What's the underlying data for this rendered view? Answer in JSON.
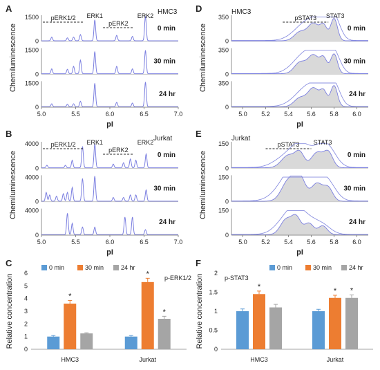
{
  "chart_data": [
    {
      "panel": "A",
      "type": "line",
      "cell_line": "HMC3",
      "ylabel": "Chemiluminescence",
      "xlabel": "pI",
      "x_ticks": [
        "5.0",
        "5.5",
        "6.0",
        "6.5",
        "7.0"
      ],
      "xlim": [
        5.0,
        7.0
      ],
      "ylim": [
        0,
        1500
      ],
      "y_ticks": [
        "1500",
        "0"
      ],
      "bracket_labels": [
        {
          "text": "pERK1/2",
          "x1": 5.02,
          "x2": 5.62
        },
        {
          "text": "pERK2",
          "x1": 5.9,
          "x2": 6.35
        }
      ],
      "peak_labels": [
        {
          "text": "ERK1",
          "x": 5.78
        },
        {
          "text": "ERK2",
          "x": 6.52
        }
      ],
      "traces": [
        {
          "label": "0 min",
          "peaks": [
            [
              5.15,
              0.15
            ],
            [
              5.38,
              0.12
            ],
            [
              5.47,
              0.15
            ],
            [
              5.57,
              0.25
            ],
            [
              5.78,
              0.85
            ],
            [
              6.1,
              0.22
            ],
            [
              6.33,
              0.18
            ],
            [
              6.52,
              1.0
            ]
          ]
        },
        {
          "label": "30 min",
          "peaks": [
            [
              5.15,
              0.2
            ],
            [
              5.38,
              0.18
            ],
            [
              5.47,
              0.3
            ],
            [
              5.57,
              0.55
            ],
            [
              5.78,
              0.9
            ],
            [
              6.1,
              0.3
            ],
            [
              6.33,
              0.2
            ],
            [
              6.52,
              0.95
            ]
          ]
        },
        {
          "label": "24 hr",
          "peaks": [
            [
              5.15,
              0.12
            ],
            [
              5.38,
              0.1
            ],
            [
              5.47,
              0.12
            ],
            [
              5.57,
              0.22
            ],
            [
              5.78,
              0.95
            ],
            [
              6.1,
              0.18
            ],
            [
              6.33,
              0.15
            ],
            [
              6.52,
              1.0
            ]
          ]
        }
      ]
    },
    {
      "panel": "B",
      "type": "line",
      "cell_line": "Jurkat",
      "ylabel": "Chemiluminescence",
      "xlabel": "pI",
      "x_ticks": [
        "5.0",
        "5.5",
        "6.0",
        "6.5",
        "7.0"
      ],
      "xlim": [
        5.0,
        7.0
      ],
      "ylim": [
        0,
        4000
      ],
      "y_ticks": [
        "4000",
        "0"
      ],
      "bracket_labels": [
        {
          "text": "pERK1/2",
          "x1": 5.02,
          "x2": 5.62
        },
        {
          "text": "pERK2",
          "x1": 5.9,
          "x2": 6.35
        }
      ],
      "peak_labels": [
        {
          "text": "ERK1",
          "x": 5.78
        },
        {
          "text": "ERK2",
          "x": 6.52
        }
      ],
      "traces": [
        {
          "label": "0 min",
          "peaks": [
            [
              5.08,
              0.1
            ],
            [
              5.35,
              0.1
            ],
            [
              5.45,
              0.3
            ],
            [
              5.6,
              0.85
            ],
            [
              5.78,
              0.95
            ],
            [
              6.05,
              0.15
            ],
            [
              6.2,
              0.2
            ],
            [
              6.3,
              0.35
            ],
            [
              6.38,
              0.3
            ],
            [
              6.53,
              0.55
            ]
          ]
        },
        {
          "label": "30 min",
          "peaks": [
            [
              5.07,
              0.35
            ],
            [
              5.12,
              0.25
            ],
            [
              5.22,
              0.2
            ],
            [
              5.32,
              0.3
            ],
            [
              5.38,
              0.35
            ],
            [
              5.45,
              0.55
            ],
            [
              5.6,
              0.9
            ],
            [
              5.78,
              1.0
            ],
            [
              6.05,
              0.15
            ],
            [
              6.2,
              0.15
            ],
            [
              6.3,
              0.25
            ],
            [
              6.38,
              0.25
            ],
            [
              6.53,
              0.45
            ]
          ]
        },
        {
          "label": "24 hr",
          "peaks": [
            [
              5.38,
              0.85
            ],
            [
              5.45,
              0.45
            ],
            [
              5.6,
              0.3
            ],
            [
              5.78,
              0.3
            ],
            [
              6.22,
              0.7
            ],
            [
              6.33,
              0.7
            ],
            [
              6.52,
              0.2
            ]
          ]
        }
      ]
    },
    {
      "panel": "C",
      "type": "bar",
      "title": "p-ERK1/2",
      "ylabel": "Relative  concentration",
      "categories": [
        "HMC3",
        "Jurkat"
      ],
      "ylim": [
        0,
        6
      ],
      "y_ticks": [
        "0",
        "1",
        "2",
        "3",
        "4",
        "5",
        "6"
      ],
      "legend_position": "top",
      "series": [
        {
          "name": "0 min",
          "color": "#5b9bd5",
          "values": [
            1.0,
            1.0
          ],
          "errors": [
            0.08,
            0.08
          ]
        },
        {
          "name": "30 min",
          "color": "#ed7d31",
          "values": [
            3.6,
            5.3
          ],
          "errors": [
            0.25,
            0.3
          ]
        },
        {
          "name": "24 hr",
          "color": "#a5a5a5",
          "values": [
            1.25,
            2.4
          ],
          "errors": [
            0.05,
            0.2
          ]
        }
      ],
      "significance": [
        [
          false,
          true,
          false
        ],
        [
          false,
          true,
          true
        ]
      ]
    },
    {
      "panel": "D",
      "type": "area",
      "cell_line": "HMC3",
      "ylabel": "Chemiluminescence",
      "xlabel": "pI",
      "x_ticks": [
        "5.0",
        "5.2",
        "5.4",
        "5.6",
        "5.8",
        "6.0"
      ],
      "xlim": [
        4.9,
        6.1
      ],
      "ylim": [
        0,
        350
      ],
      "y_ticks": [
        "350",
        "0"
      ],
      "bracket_labels": [
        {
          "text": "pSTAT3",
          "x1": 5.35,
          "x2": 5.75
        }
      ],
      "peak_labels": [
        {
          "text": "STAT3",
          "x": 5.81
        }
      ],
      "traces": [
        {
          "label": "0 min",
          "peaks": [
            [
              5.5,
              0.35,
              0.05
            ],
            [
              5.62,
              0.7,
              0.05
            ],
            [
              5.71,
              0.55,
              0.03
            ],
            [
              5.8,
              0.9,
              0.03
            ]
          ]
        },
        {
          "label": "30 min",
          "peaks": [
            [
              5.5,
              0.45,
              0.05
            ],
            [
              5.62,
              0.75,
              0.05
            ],
            [
              5.71,
              0.55,
              0.03
            ],
            [
              5.8,
              0.8,
              0.03
            ]
          ]
        },
        {
          "label": "24 hr",
          "peaks": [
            [
              5.5,
              0.35,
              0.05
            ],
            [
              5.62,
              0.75,
              0.05
            ],
            [
              5.71,
              0.55,
              0.03
            ],
            [
              5.8,
              0.85,
              0.03
            ]
          ]
        }
      ]
    },
    {
      "panel": "E",
      "type": "area",
      "cell_line": "Jurkat",
      "ylabel": "Chemiluminescence",
      "xlabel": "pI",
      "x_ticks": [
        "5.0",
        "5.2",
        "5.4",
        "5.6",
        "5.8",
        "6.0"
      ],
      "xlim": [
        4.9,
        6.1
      ],
      "ylim": [
        0,
        150
      ],
      "y_ticks": [
        "150",
        "0"
      ],
      "bracket_labels": [
        {
          "text": "pSTAT3",
          "x1": 5.2,
          "x2": 5.6
        }
      ],
      "peak_labels": [
        {
          "text": "STAT3",
          "x": 5.7
        }
      ],
      "traces": [
        {
          "label": "0 min",
          "peaks": [
            [
              5.4,
              0.5,
              0.06
            ],
            [
              5.5,
              0.55,
              0.04
            ],
            [
              5.65,
              0.6,
              0.05
            ],
            [
              5.75,
              0.6,
              0.04
            ]
          ]
        },
        {
          "label": "30 min",
          "peaks": [
            [
              5.4,
              0.8,
              0.06
            ],
            [
              5.5,
              0.9,
              0.05
            ],
            [
              5.65,
              0.7,
              0.05
            ],
            [
              5.75,
              0.5,
              0.04
            ]
          ]
        },
        {
          "label": "24 hr",
          "peaks": [
            [
              5.38,
              0.6,
              0.05
            ],
            [
              5.47,
              0.65,
              0.04
            ],
            [
              5.58,
              0.45,
              0.04
            ],
            [
              5.7,
              0.35,
              0.04
            ]
          ]
        }
      ]
    },
    {
      "panel": "F",
      "type": "bar",
      "title": "p-STAT3",
      "ylabel": "Relative  concentration",
      "categories": [
        "HMC3",
        "Jurkat"
      ],
      "ylim": [
        0,
        2
      ],
      "y_ticks": [
        "0",
        "0.5",
        "1",
        "1.5",
        "2"
      ],
      "legend_position": "top",
      "series": [
        {
          "name": "0 min",
          "color": "#5b9bd5",
          "values": [
            1.0,
            1.0
          ],
          "errors": [
            0.06,
            0.05
          ]
        },
        {
          "name": "30 min",
          "color": "#ed7d31",
          "values": [
            1.45,
            1.35
          ],
          "errors": [
            0.08,
            0.07
          ]
        },
        {
          "name": "24 hr",
          "color": "#a5a5a5",
          "values": [
            1.1,
            1.35
          ],
          "errors": [
            0.08,
            0.08
          ]
        }
      ],
      "significance": [
        [
          false,
          true,
          false
        ],
        [
          false,
          true,
          true
        ]
      ]
    }
  ]
}
